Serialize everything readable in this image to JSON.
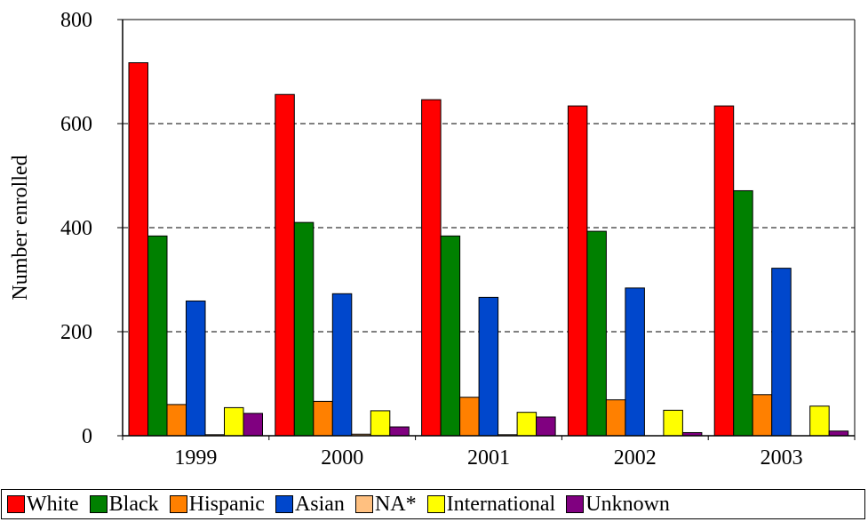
{
  "chart_data": {
    "type": "bar",
    "title": "",
    "xlabel": "",
    "ylabel": "Number enrolled",
    "ylim": [
      0,
      800
    ],
    "yticks": [
      0,
      200,
      400,
      600,
      800
    ],
    "grid": "horizontal dashed",
    "legend_position": "bottom",
    "categories": [
      "1999",
      "2000",
      "2001",
      "2002",
      "2003"
    ],
    "series": [
      {
        "name": "White",
        "color": "#ff0000",
        "values": [
          717,
          656,
          646,
          634,
          634
        ]
      },
      {
        "name": "Black",
        "color": "#008000",
        "values": [
          384,
          410,
          384,
          393,
          471
        ]
      },
      {
        "name": "Hispanic",
        "color": "#ff8000",
        "values": [
          60,
          66,
          74,
          69,
          79
        ]
      },
      {
        "name": "Asian",
        "color": "#0047cc",
        "values": [
          259,
          273,
          266,
          284,
          322
        ]
      },
      {
        "name": "NA*",
        "color": "#ffc080",
        "values": [
          2,
          3,
          2,
          0,
          0
        ]
      },
      {
        "name": "International",
        "color": "#ffff00",
        "values": [
          54,
          48,
          45,
          49,
          57
        ]
      },
      {
        "name": "Unknown",
        "color": "#800080",
        "values": [
          43,
          17,
          36,
          6,
          9
        ]
      }
    ]
  }
}
